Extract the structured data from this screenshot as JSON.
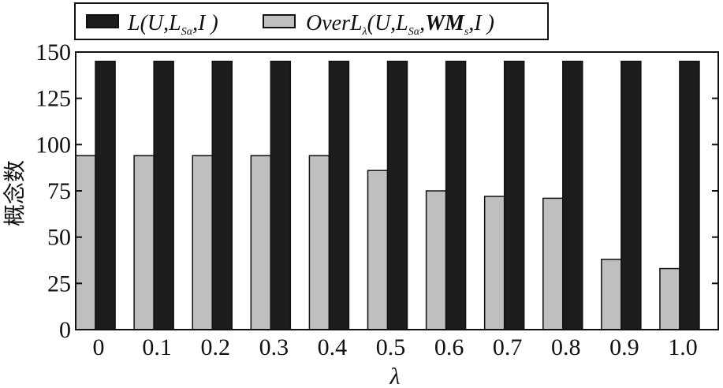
{
  "chart_data": {
    "type": "bar",
    "xlabel": "λ",
    "ylabel": "概念数",
    "ylim": [
      0,
      150
    ],
    "yticks": [
      0,
      25,
      50,
      75,
      100,
      125,
      150
    ],
    "categories": [
      "0",
      "0.1",
      "0.2",
      "0.3",
      "0.4",
      "0.5",
      "0.6",
      "0.7",
      "0.8",
      "0.9",
      "1.0"
    ],
    "series": [
      {
        "name": "OverLλ(U,LSα,WMs,I)",
        "color": "#bfbfbf",
        "values": [
          94,
          94,
          94,
          94,
          94,
          86,
          75,
          72,
          71,
          38,
          33
        ]
      },
      {
        "name": "L(U,LSα,I)",
        "color": "#1c1c1c",
        "values": [
          145,
          145,
          145,
          145,
          145,
          145,
          145,
          145,
          145,
          145,
          145
        ]
      }
    ],
    "legend": {
      "placement": "top-left",
      "entries": [
        "L(U,LSα,I)",
        "OverLλ(U,LSα,WMs,I)"
      ]
    },
    "grid": false
  }
}
